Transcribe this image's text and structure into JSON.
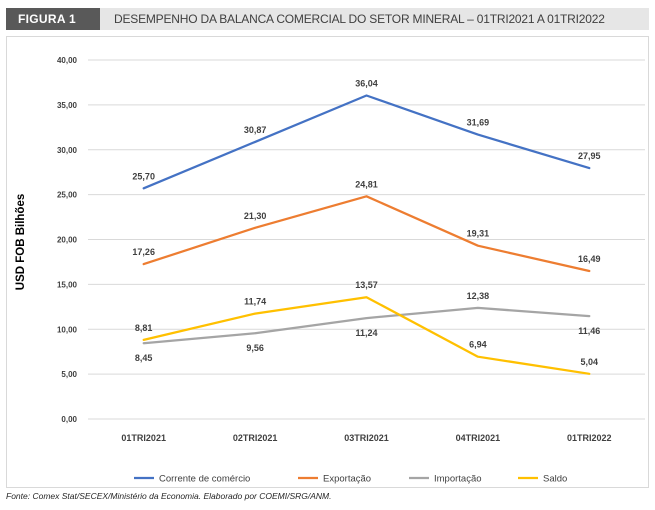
{
  "figure_label": "FIGURA 1",
  "title": "DESEMPENHO DA BALANCA COMERCIAL DO SETOR MINERAL – 01TRI2021 A 01TRI2022",
  "source": "Fonte: Comex Stat/SECEX/Ministério da Economia. Elaborado por COEMI/SRG/ANM.",
  "chart_data": {
    "type": "line",
    "ylabel": "USD FOB Bilhões",
    "xlabel": "",
    "categories": [
      "01TRI2021",
      "02TRI2021",
      "03TRI2021",
      "04TRI2021",
      "01TRI2022"
    ],
    "ylim": [
      0,
      40
    ],
    "yticks": [
      "0,00",
      "5,00",
      "10,00",
      "15,00",
      "20,00",
      "25,00",
      "30,00",
      "35,00",
      "40,00"
    ],
    "grid": true,
    "legend_position": "bottom",
    "series": [
      {
        "name": "Corrente de comércio",
        "color": "#4472c4",
        "values": [
          25.7,
          30.87,
          36.04,
          31.69,
          27.95
        ],
        "labels": [
          "25,70",
          "30,87",
          "36,04",
          "31,69",
          "27,95"
        ],
        "label_side": [
          "above",
          "above",
          "above",
          "above",
          "above"
        ]
      },
      {
        "name": "Exportação",
        "color": "#ed7d31",
        "values": [
          17.26,
          21.3,
          24.81,
          19.31,
          16.49
        ],
        "labels": [
          "17,26",
          "21,30",
          "24,81",
          "19,31",
          "16,49"
        ],
        "label_side": [
          "above",
          "above",
          "above",
          "above",
          "above"
        ]
      },
      {
        "name": "Importação",
        "color": "#a5a5a5",
        "values": [
          8.45,
          9.56,
          11.24,
          12.38,
          11.46
        ],
        "labels": [
          "8,45",
          "9,56",
          "11,24",
          "12,38",
          "11,46"
        ],
        "label_side": [
          "below",
          "below",
          "below",
          "above",
          "below"
        ]
      },
      {
        "name": "Saldo",
        "color": "#ffc000",
        "values": [
          8.81,
          11.74,
          13.57,
          6.94,
          5.04
        ],
        "labels": [
          "8,81",
          "11,74",
          "13,57",
          "6,94",
          "5,04"
        ],
        "label_side": [
          "above",
          "above",
          "above",
          "above",
          "above"
        ]
      }
    ]
  }
}
